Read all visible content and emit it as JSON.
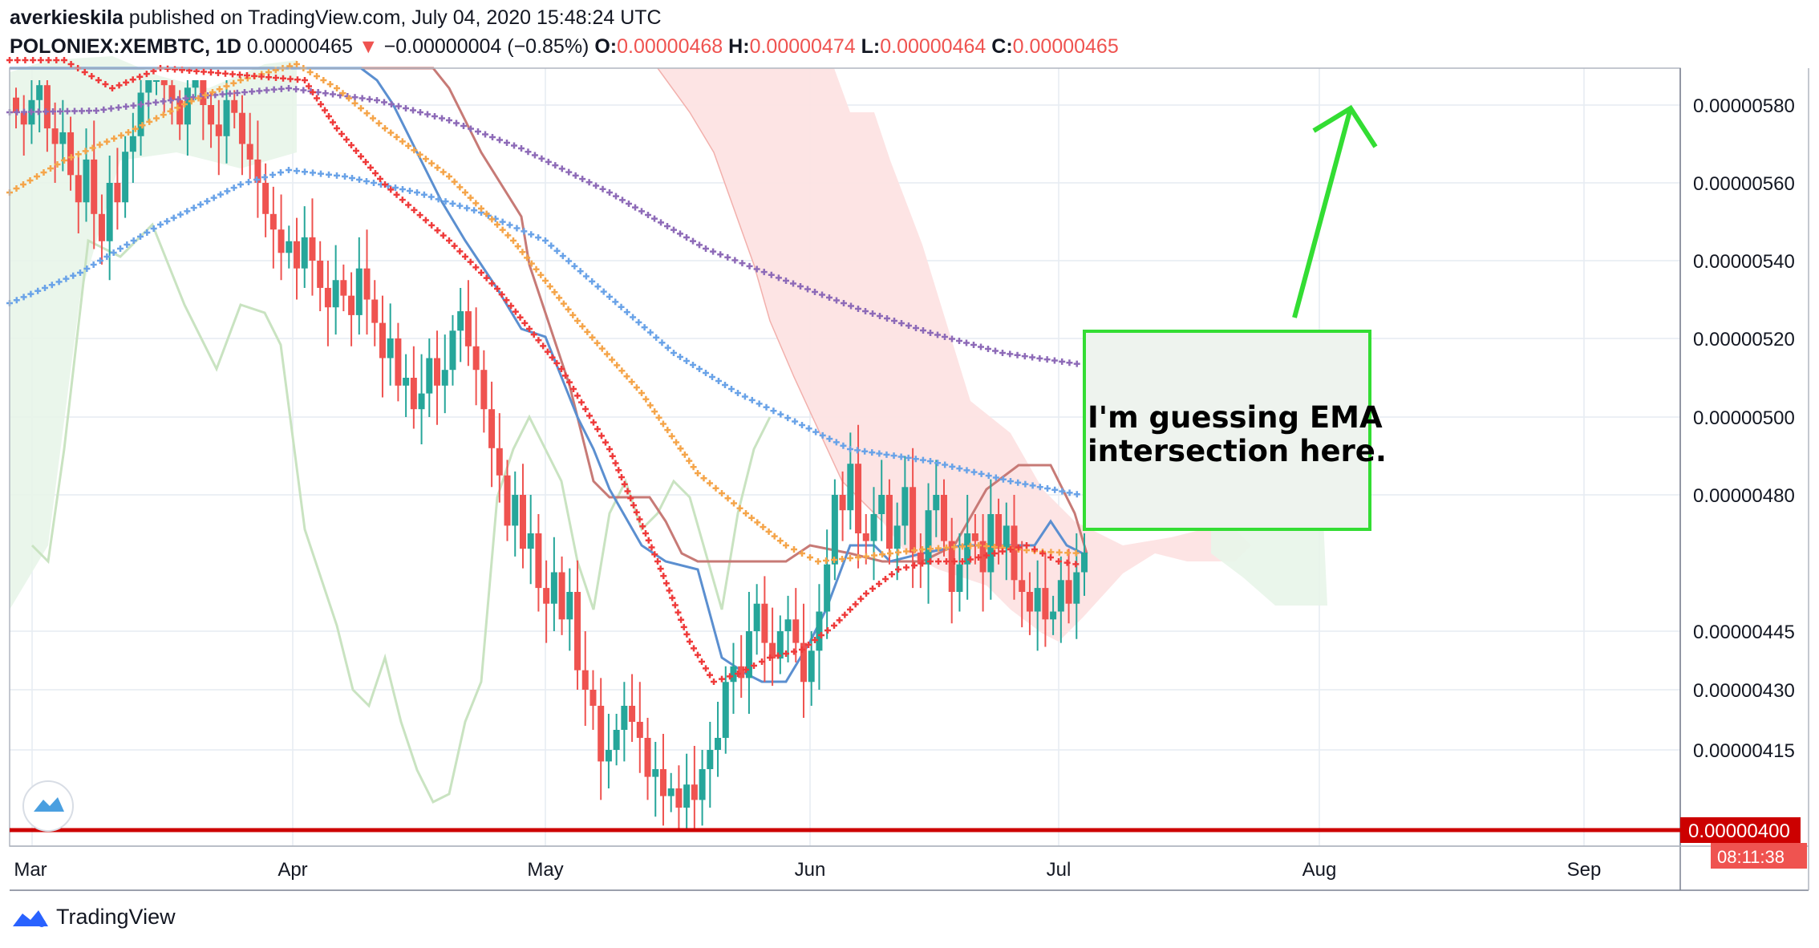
{
  "header": {
    "author": "averkieskila",
    "published": "published on TradingView.com, July 04, 2020 15:48:24 UTC",
    "symbol": "POLONIEX:XEMBTC, 1D",
    "last": "0.00000465",
    "change_arrow": "▼",
    "change": "−0.00000004 (−0.85%)",
    "o_label": "O:",
    "o": "0.00000468",
    "h_label": "H:",
    "h": "0.00000474",
    "l_label": "L:",
    "l": "0.00000464",
    "c_label": "C:",
    "c": "0.00000465"
  },
  "footer": {
    "brand": "TradingView"
  },
  "colors": {
    "up": "#26a69a",
    "down": "#ef5350",
    "ema_purple": "#8e6bb8",
    "ema_blue": "#6aa3e8",
    "ema_orange": "#f5a54a",
    "psar": "#ef3b3b",
    "kijun": "#c77a76",
    "tenkan": "#5b8fd0",
    "chikou": "#c9e3c1",
    "cloud_green": "#e8f5e9",
    "cloud_red": "#fde3e3",
    "annotation": "#33dd33",
    "price_line": "#cc0000"
  },
  "chart_data": {
    "type": "candlestick",
    "title": "POLONIEX:XEMBTC, 1D",
    "x_ticks": [
      "Mar",
      "Apr",
      "May",
      "Jun",
      "Jul",
      "Aug",
      "Sep"
    ],
    "y_ticks": [
      "0.00000580",
      "0.00000560",
      "0.00000540",
      "0.00000520",
      "0.00000500",
      "0.00000480",
      "0.00000445",
      "0.00000430",
      "0.00000415"
    ],
    "ylim": [
      3.95e-06,
      5.9e-06
    ],
    "price_label": "0.00000465",
    "countdown": "08:11:38",
    "support_label": "0.00000400",
    "support_level": 4e-06,
    "current_price": 4.65e-06,
    "annotation_text": [
      "I'm guessing EMA",
      "intersection here."
    ],
    "indicators": [
      "EMA (purple)",
      "EMA (blue)",
      "EMA (orange)",
      "Parabolic SAR",
      "Ichimoku Cloud"
    ],
    "ohlc_closes": [
      5.78,
      5.75,
      5.82,
      5.88,
      5.74,
      5.7,
      5.73,
      5.62,
      5.55,
      5.66,
      5.52,
      5.45,
      5.6,
      5.55,
      5.68,
      5.72,
      5.85,
      5.9,
      5.93,
      5.88,
      5.82,
      5.75,
      5.87,
      5.92,
      5.8,
      5.75,
      5.72,
      5.82,
      5.78,
      5.7,
      5.66,
      5.6,
      5.52,
      5.48,
      5.42,
      5.45,
      5.38,
      5.46,
      5.4,
      5.33,
      5.28,
      5.35,
      5.31,
      5.26,
      5.38,
      5.3,
      5.24,
      5.15,
      5.2,
      5.08,
      5.1,
      5.02,
      5.06,
      5.15,
      5.08,
      5.12,
      5.22,
      5.27,
      5.18,
      5.12,
      5.02,
      4.92,
      4.85,
      4.72,
      4.8,
      4.66,
      4.7,
      4.56,
      4.52,
      4.6,
      4.48,
      4.55,
      4.35,
      4.3,
      4.26,
      4.12,
      4.15,
      4.2,
      4.26,
      4.22,
      4.18,
      4.08,
      4.1,
      4.03,
      4.05,
      4.0,
      4.06,
      4.02,
      4.1,
      4.15,
      4.18,
      4.32,
      4.36,
      4.33,
      4.45,
      4.52,
      4.42,
      4.38,
      4.45,
      4.48,
      4.42,
      4.32,
      4.4,
      4.5,
      4.62,
      4.8,
      4.76,
      4.88,
      4.7,
      4.68,
      4.75,
      4.8,
      4.66,
      4.72,
      4.82,
      4.65,
      4.62,
      4.76,
      4.8,
      4.68,
      4.55,
      4.62,
      4.7,
      4.68,
      4.6,
      4.75,
      4.66,
      4.72,
      4.58,
      4.55,
      4.5,
      4.56,
      4.48,
      4.5,
      4.58,
      4.52,
      4.6,
      4.65
    ]
  }
}
